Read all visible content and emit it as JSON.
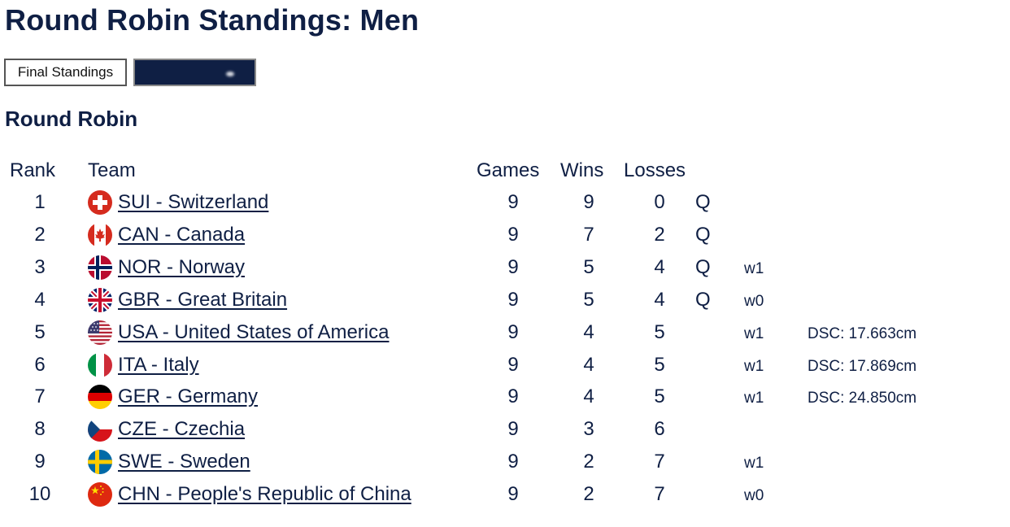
{
  "page": {
    "title": "Round Robin Standings: Men",
    "tabs": {
      "final_label": "Final Standings",
      "second_label": ""
    },
    "section_title": "Round Robin"
  },
  "table": {
    "headers": {
      "rank": "Rank",
      "team": "Team",
      "games": "Games",
      "wins": "Wins",
      "losses": "Losses"
    },
    "rows": [
      {
        "rank": "1",
        "flag": "sui-flag-icon",
        "team": "SUI - Switzerland",
        "games": "9",
        "wins": "9",
        "losses": "0",
        "q": "Q",
        "w": "",
        "dsc": ""
      },
      {
        "rank": "2",
        "flag": "can-flag-icon",
        "team": "CAN - Canada",
        "games": "9",
        "wins": "7",
        "losses": "2",
        "q": "Q",
        "w": "",
        "dsc": ""
      },
      {
        "rank": "3",
        "flag": "nor-flag-icon",
        "team": "NOR - Norway",
        "games": "9",
        "wins": "5",
        "losses": "4",
        "q": "Q",
        "w": "w1",
        "dsc": ""
      },
      {
        "rank": "4",
        "flag": "gbr-flag-icon",
        "team": "GBR - Great Britain",
        "games": "9",
        "wins": "5",
        "losses": "4",
        "q": "Q",
        "w": "w0",
        "dsc": ""
      },
      {
        "rank": "5",
        "flag": "usa-flag-icon",
        "team": "USA - United States of America",
        "games": "9",
        "wins": "4",
        "losses": "5",
        "q": "",
        "w": "w1",
        "dsc": "DSC:  17.663cm"
      },
      {
        "rank": "6",
        "flag": "ita-flag-icon",
        "team": "ITA - Italy",
        "games": "9",
        "wins": "4",
        "losses": "5",
        "q": "",
        "w": "w1",
        "dsc": "DSC:  17.869cm"
      },
      {
        "rank": "7",
        "flag": "ger-flag-icon",
        "team": "GER - Germany",
        "games": "9",
        "wins": "4",
        "losses": "5",
        "q": "",
        "w": "w1",
        "dsc": "DSC:  24.850cm"
      },
      {
        "rank": "8",
        "flag": "cze-flag-icon",
        "team": "CZE - Czechia",
        "games": "9",
        "wins": "3",
        "losses": "6",
        "q": "",
        "w": "",
        "dsc": ""
      },
      {
        "rank": "9",
        "flag": "swe-flag-icon",
        "team": "SWE - Sweden",
        "games": "9",
        "wins": "2",
        "losses": "7",
        "q": "",
        "w": "w1",
        "dsc": ""
      },
      {
        "rank": "10",
        "flag": "chn-flag-icon",
        "team": "CHN - People's Republic of China",
        "games": "9",
        "wins": "2",
        "losses": "7",
        "q": "",
        "w": "w0",
        "dsc": ""
      }
    ]
  },
  "colors": {
    "navy": "#0f1f44",
    "tab_dark_bg": "#0f1f44"
  }
}
